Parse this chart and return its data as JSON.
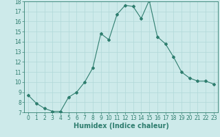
{
  "x": [
    0,
    1,
    2,
    3,
    4,
    5,
    6,
    7,
    8,
    9,
    10,
    11,
    12,
    13,
    14,
    15,
    16,
    17,
    18,
    19,
    20,
    21,
    22,
    23
  ],
  "y": [
    8.7,
    7.9,
    7.4,
    7.1,
    7.1,
    8.5,
    9.0,
    10.0,
    11.4,
    14.8,
    14.2,
    16.7,
    17.6,
    17.5,
    16.3,
    18.1,
    14.5,
    13.8,
    12.5,
    11.0,
    10.4,
    10.1,
    10.1,
    9.8
  ],
  "title": "",
  "xlabel": "Humidex (Indice chaleur)",
  "ylabel": "",
  "ylim": [
    7,
    18
  ],
  "xlim": [
    -0.5,
    23.5
  ],
  "yticks": [
    7,
    8,
    9,
    10,
    11,
    12,
    13,
    14,
    15,
    16,
    17,
    18
  ],
  "xticks": [
    0,
    1,
    2,
    3,
    4,
    5,
    6,
    7,
    8,
    9,
    10,
    11,
    12,
    13,
    14,
    15,
    16,
    17,
    18,
    19,
    20,
    21,
    22,
    23
  ],
  "line_color": "#2e7d6e",
  "marker": "D",
  "markersize": 2.0,
  "linewidth": 0.8,
  "bg_color": "#cdeaea",
  "grid_color": "#b0d8d8",
  "xlabel_fontsize": 7,
  "tick_fontsize": 5.5
}
